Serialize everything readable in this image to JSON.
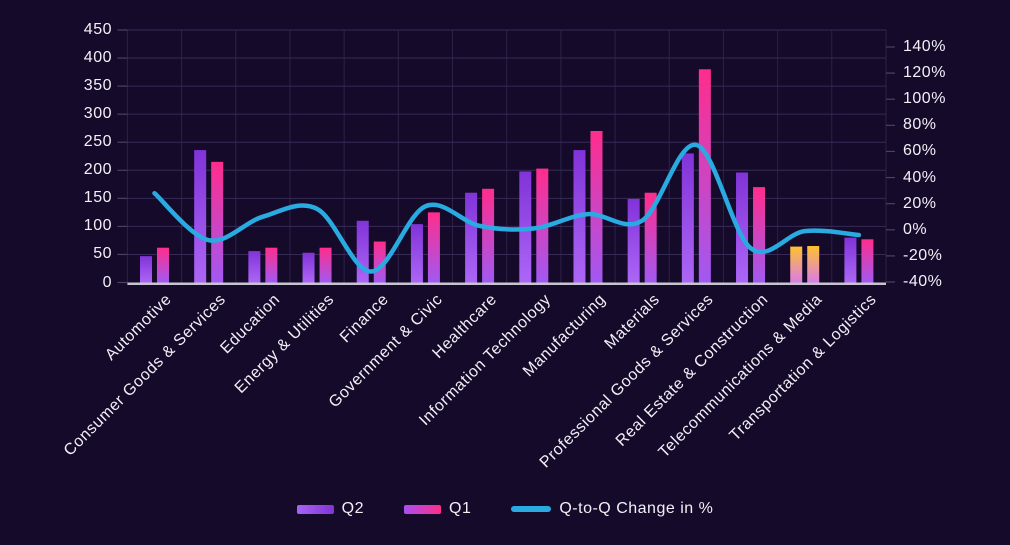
{
  "colors": {
    "background": "#160A2B",
    "grid_h": "#352B55",
    "grid_v": "#2B2248",
    "tick": "#4A415F",
    "baseline": "#C6C4CF",
    "text": "#F2F0F7",
    "line": "#29ABE2",
    "q2_gradient_top": "#8133D8",
    "q2_gradient_bottom": "#AC66F6",
    "q1_gradient_top": "#FF2D8C",
    "q1_gradient_bottom": "#A159F2",
    "highlight_gradient_top": "#FFC12E",
    "highlight_gradient_bottom": "#DB7CE8"
  },
  "chart_data": {
    "type": "bar",
    "subtype": "grouped bars with secondary-axis line (combo chart)",
    "title": "",
    "xlabel": "",
    "ylabel": "",
    "grid": true,
    "legend_position": "bottom",
    "categories": [
      "Automotive",
      "Consumer Goods & Services",
      "Education",
      "Energy & Utilities",
      "Finance",
      "Government & Civic",
      "Healthcare",
      "Information Technology",
      "Manufacturing",
      "Materials",
      "Professional Goods & Services",
      "Real Estate & Construction",
      "Telecommunications & Media",
      "Transportation & Logistics"
    ],
    "series": [
      {
        "name": "Q2",
        "type": "bar",
        "axis": "left",
        "values": [
          47,
          236,
          56,
          53,
          110,
          104,
          160,
          198,
          236,
          149,
          230,
          196,
          64,
          80
        ]
      },
      {
        "name": "Q1",
        "type": "bar",
        "axis": "left",
        "values": [
          62,
          215,
          62,
          62,
          73,
          125,
          167,
          203,
          270,
          160,
          380,
          170,
          65,
          77
        ]
      },
      {
        "name": "Q-to-Q Change in %",
        "type": "line",
        "axis": "right",
        "values": [
          28,
          -8,
          10,
          16,
          -32,
          18,
          3,
          1,
          12,
          7,
          65,
          -14,
          -1,
          -4
        ]
      }
    ],
    "highlighted_category": "Telecommunications & Media",
    "left_axis": {
      "min": 0,
      "max": 450,
      "step": 50,
      "tick_labels": [
        "0",
        "50",
        "100",
        "150",
        "200",
        "250",
        "300",
        "350",
        "400",
        "450"
      ]
    },
    "right_axis": {
      "min": -40,
      "max": 140,
      "step": 20,
      "tick_labels": [
        "-40%",
        "-20%",
        "0%",
        "20%",
        "40%",
        "60%",
        "80%",
        "100%",
        "120%",
        "140%"
      ]
    },
    "legend": [
      {
        "label": "Q2"
      },
      {
        "label": "Q1"
      },
      {
        "label": "Q-to-Q Change in %"
      }
    ]
  }
}
